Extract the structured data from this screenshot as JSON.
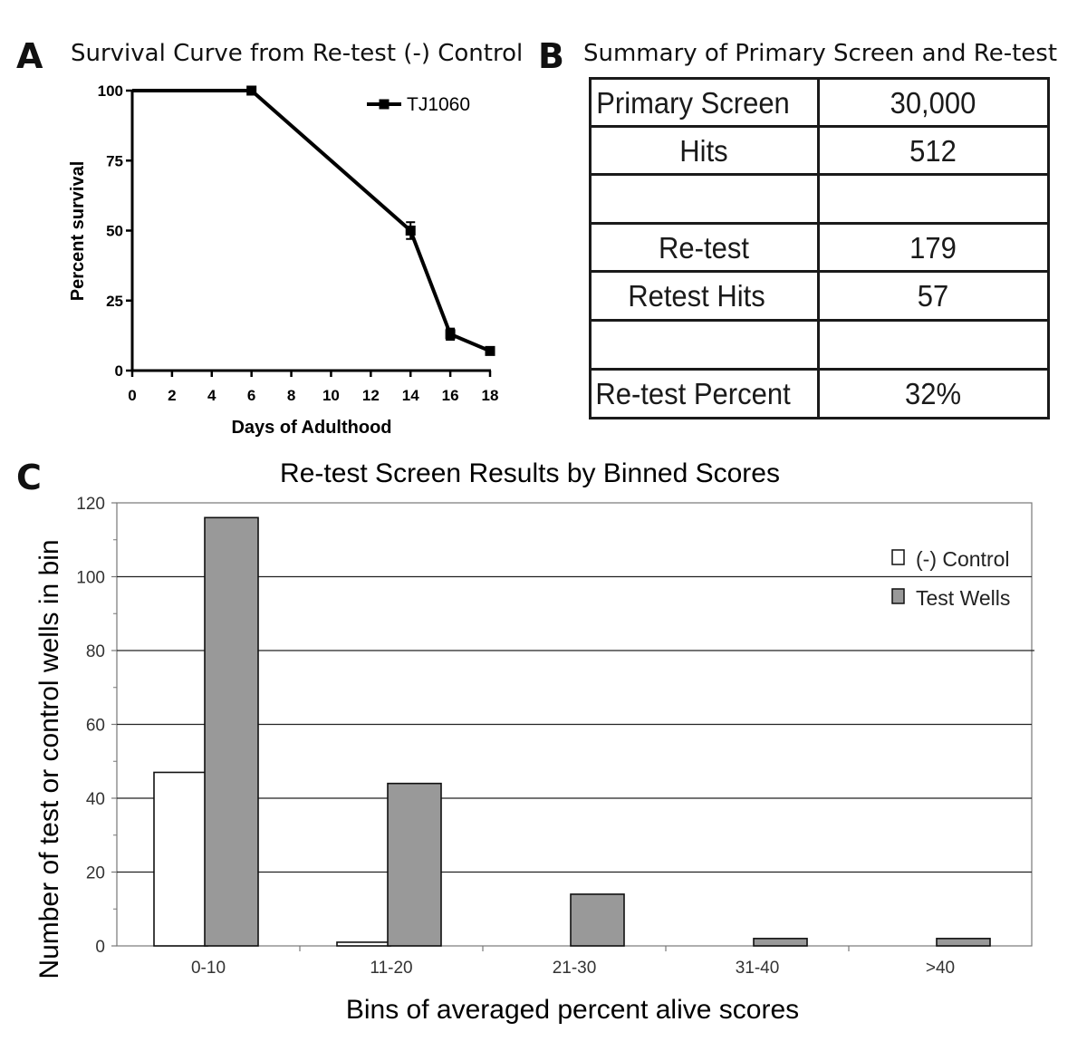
{
  "panels": {
    "a": {
      "letter": "A",
      "title": "Survival Curve from Re-test (-) Control"
    },
    "b": {
      "letter": "B",
      "title": "Summary of Primary Screen and Re-test"
    },
    "c": {
      "letter": "C",
      "title": "Re-test Screen Results by Binned Scores"
    }
  },
  "table": {
    "rows": [
      {
        "label": "Primary Screen",
        "value": "30,000"
      },
      {
        "label": "Hits",
        "value": "512"
      },
      {
        "label": "",
        "value": ""
      },
      {
        "label": "Re-test",
        "value": "179"
      },
      {
        "label": "Retest Hits",
        "value": "57"
      },
      {
        "label": "",
        "value": ""
      },
      {
        "label": "Re-test Percent",
        "value": "32%"
      }
    ]
  },
  "chart_data": [
    {
      "type": "line",
      "title": "Survival Curve from Re-test (-) Control",
      "xlabel": "Days of Adulthood",
      "ylabel": "Percent survival",
      "xlim": [
        0,
        18
      ],
      "ylim": [
        0,
        100
      ],
      "xticks": [
        0,
        2,
        4,
        6,
        8,
        10,
        12,
        14,
        16,
        18
      ],
      "yticks": [
        0,
        25,
        50,
        75,
        100
      ],
      "legend_position": "top-right",
      "series": [
        {
          "name": "TJ1060",
          "x": [
            0,
            6,
            14,
            16,
            18
          ],
          "y": [
            100,
            100,
            50,
            13,
            7
          ],
          "error": [
            0,
            0,
            3,
            2,
            0
          ],
          "marker": [
            false,
            true,
            true,
            true,
            true
          ]
        }
      ]
    },
    {
      "type": "bar",
      "title": "Re-test Screen Results by Binned Scores",
      "xlabel": "Bins of averaged percent alive scores",
      "ylabel": "Number of test or control wells in bin",
      "ylim": [
        0,
        120
      ],
      "yticks": [
        0,
        20,
        40,
        60,
        80,
        100,
        120
      ],
      "grid": true,
      "legend_position": "top-right",
      "categories": [
        "0-10",
        "11-20",
        "21-30",
        "31-40",
        ">40"
      ],
      "series": [
        {
          "name": "(-) Control",
          "color": "#ffffff",
          "values": [
            47,
            1,
            0,
            0,
            0
          ]
        },
        {
          "name": "Test Wells",
          "color": "#999999",
          "values": [
            116,
            44,
            14,
            2,
            2
          ]
        }
      ]
    }
  ]
}
